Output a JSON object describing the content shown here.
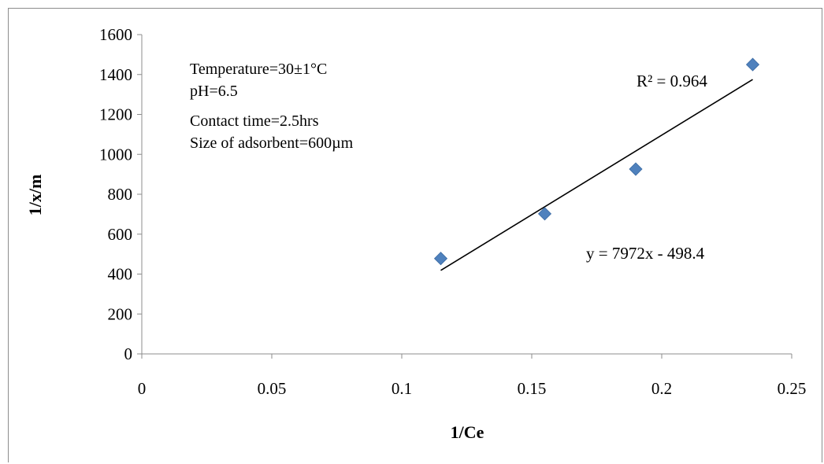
{
  "chart_data": {
    "type": "scatter",
    "xlabel": "1/Ce",
    "ylabel": "1/x/m",
    "xlim": [
      0,
      0.25
    ],
    "ylim": [
      0,
      1600
    ],
    "x_ticks": [
      "0",
      "0.05",
      "0.1",
      "0.15",
      "0.2",
      "0.25"
    ],
    "y_ticks": [
      "0",
      "200",
      "400",
      "600",
      "800",
      "1000",
      "1200",
      "1400",
      "1600"
    ],
    "x_tick_values": [
      0,
      0.05,
      0.1,
      0.15,
      0.2,
      0.25
    ],
    "y_tick_values": [
      0,
      200,
      400,
      600,
      800,
      1000,
      1200,
      1400,
      1600
    ],
    "grid": false,
    "series": [
      {
        "marker": "diamond",
        "color": "#4f81bd",
        "points": [
          {
            "x": 0.115,
            "y": 478
          },
          {
            "x": 0.155,
            "y": 702
          },
          {
            "x": 0.19,
            "y": 926
          },
          {
            "x": 0.235,
            "y": 1450
          }
        ]
      }
    ],
    "trendline": {
      "slope": 7972,
      "intercept": -498.4,
      "x_range": [
        0.115,
        0.235
      ],
      "equation": "y = 7972x - 498.4",
      "r_squared": "R² = 0.964",
      "color": "#000000"
    },
    "annotations": [
      "Temperature=30±1°C",
      "pH=6.5",
      "Contact time=2.5hrs",
      "Size of adsorbent=600µm"
    ]
  }
}
